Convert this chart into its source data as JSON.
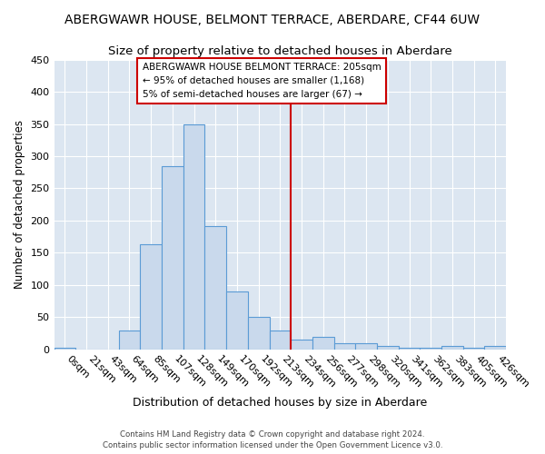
{
  "title": "ABERGWAWR HOUSE, BELMONT TERRACE, ABERDARE, CF44 6UW",
  "subtitle": "Size of property relative to detached houses in Aberdare",
  "xlabel": "Distribution of detached houses by size in Aberdare",
  "ylabel": "Number of detached properties",
  "bar_labels": [
    "0sqm",
    "21sqm",
    "43sqm",
    "64sqm",
    "85sqm",
    "107sqm",
    "128sqm",
    "149sqm",
    "170sqm",
    "192sqm",
    "213sqm",
    "234sqm",
    "256sqm",
    "277sqm",
    "298sqm",
    "320sqm",
    "341sqm",
    "362sqm",
    "383sqm",
    "405sqm",
    "426sqm"
  ],
  "bar_heights": [
    3,
    0,
    0,
    30,
    163,
    285,
    350,
    192,
    90,
    50,
    30,
    15,
    20,
    10,
    10,
    5,
    2,
    2,
    5,
    2,
    5
  ],
  "bar_color": "#c9d9ec",
  "bar_edgecolor": "#5b9bd5",
  "vline_x": 10.5,
  "vline_color": "#cc0000",
  "annotation_text": "ABERGWAWR HOUSE BELMONT TERRACE: 205sqm\n← 95% of detached houses are smaller (1,168)\n5% of semi-detached houses are larger (67) →",
  "annotation_box_edgecolor": "#cc0000",
  "annotation_box_facecolor": "#ffffff",
  "ylim": [
    0,
    450
  ],
  "yticks": [
    0,
    50,
    100,
    150,
    200,
    250,
    300,
    350,
    400,
    450
  ],
  "title_fontsize": 10,
  "subtitle_fontsize": 9.5,
  "bg_color": "#ffffff",
  "plot_bg_color": "#dce6f1",
  "grid_color": "#ffffff",
  "xlabel_fontsize": 9,
  "ylabel_fontsize": 8.5,
  "tick_fontsize": 8,
  "footer_text": "Contains HM Land Registry data © Crown copyright and database right 2024.\nContains public sector information licensed under the Open Government Licence v3.0."
}
